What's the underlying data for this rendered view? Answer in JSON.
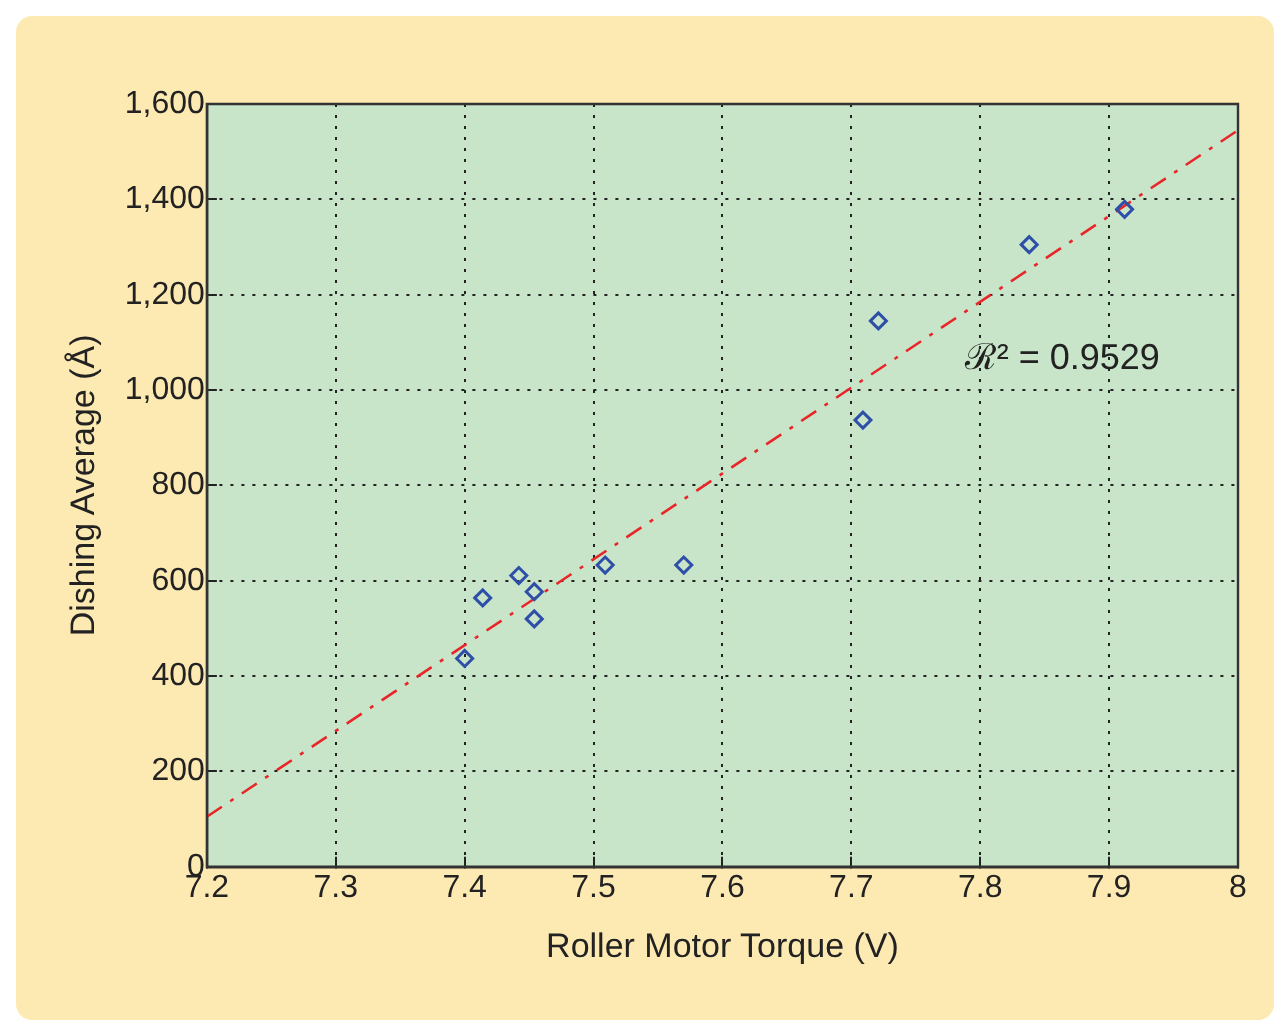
{
  "chart_data": {
    "type": "scatter",
    "xlabel": "Roller Motor Torque (V)",
    "ylabel": "Dishing Average (Å)",
    "series": [
      {
        "color": "#2e4fa8",
        "marker": "diamond",
        "x": [
          7.4,
          7.414,
          7.442,
          7.454,
          7.454,
          7.509,
          7.57,
          7.709,
          7.721,
          7.838,
          7.912
        ],
        "values": [
          437,
          564,
          611,
          577,
          520,
          633,
          633,
          937,
          1145,
          1305,
          1379
        ]
      },
      {
        "type": "line",
        "color": "#e8262a",
        "marker": "none",
        "line_style": "dashed",
        "x": [
          7.2,
          8.0
        ],
        "values": [
          105,
          1545
        ]
      }
    ],
    "xlim": [
      7.2,
      8.0
    ],
    "xticks": [
      7.2,
      7.3,
      7.4,
      7.5,
      7.6,
      7.7,
      7.8,
      7.9,
      8
    ],
    "ylim": [
      0,
      1600
    ],
    "yticks": [
      0,
      200,
      400,
      600,
      800,
      {
        "value": 1000,
        "label": "1,000"
      },
      {
        "value": 1200,
        "label": "1,200"
      },
      {
        "value": 1400,
        "label": "1,400"
      },
      {
        "value": 1600,
        "label": "1,600"
      }
    ],
    "grid": true,
    "legend": false,
    "annotations": [
      "ℛ² = 0.9529"
    ]
  }
}
